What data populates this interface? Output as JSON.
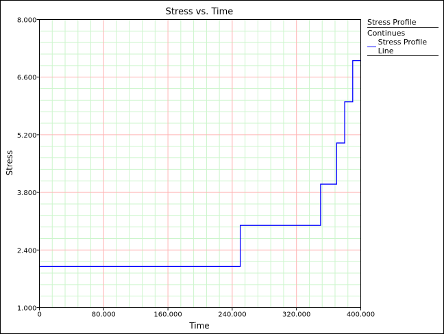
{
  "chart_data": {
    "type": "line",
    "title": "Stress vs. Time",
    "xlabel": "Time",
    "ylabel": "Stress",
    "xlim": [
      0,
      400
    ],
    "ylim": [
      1,
      8
    ],
    "x_ticks": [
      "0",
      "80.000",
      "160.000",
      "240.000",
      "320.000",
      "400.000"
    ],
    "y_ticks": [
      "1.000",
      "2.400",
      "3.800",
      "5.200",
      "6.600",
      "8.000"
    ],
    "x_tick_values": [
      0,
      80,
      160,
      240,
      320,
      400
    ],
    "y_tick_values": [
      1,
      2.4,
      3.8,
      5.2,
      6.6,
      8
    ],
    "grid": true,
    "major_grid_color": "#ffb3b3",
    "minor_grid_color": "#ccf5cc",
    "minor_divisions": 5,
    "legend_placement": "right",
    "series": [
      {
        "name": "Stress Profile Line",
        "color": "#0000ff",
        "step": true,
        "x": [
          0,
          250,
          350,
          370,
          380,
          390,
          400
        ],
        "y": [
          2,
          3,
          4,
          5,
          6,
          7,
          7
        ]
      }
    ]
  },
  "legend": {
    "header": "Stress Profile",
    "group": "Continues",
    "entry": "Stress Profile Line"
  }
}
